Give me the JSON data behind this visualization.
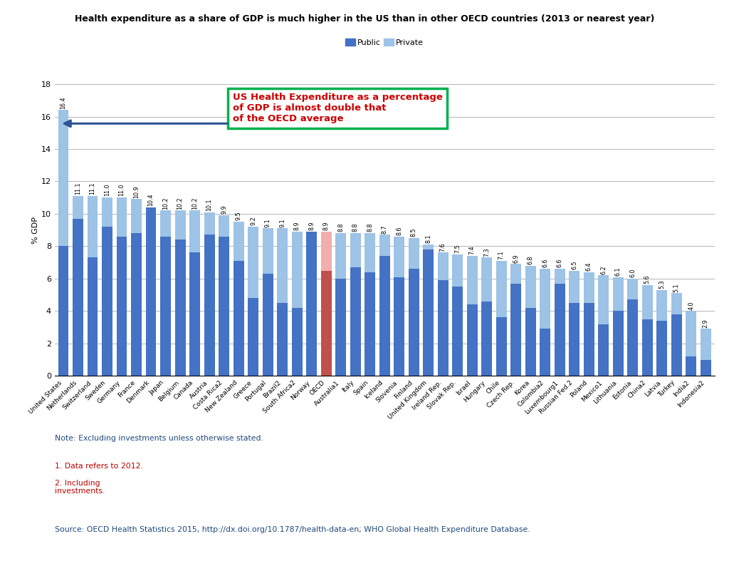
{
  "title": "Health expenditure as a share of GDP is much higher in the US than in other OECD countries (2013 or nearest year)",
  "ylabel": "% GDP",
  "legend_labels": [
    "Public",
    "Private"
  ],
  "public_color": "#4472C4",
  "private_color": "#9DC3E6",
  "oecd_public_color": "#C0504D",
  "oecd_private_color": "#F2AEAC",
  "background_color": "#FFFFFF",
  "countries": [
    "United States",
    "Netherlands",
    "Switzerland",
    "Sweden",
    "Germany",
    "France",
    "Denmark",
    "Japan",
    "Belgium",
    "Canada",
    "Austria",
    "Costa Rica2",
    "New Zealand",
    "Greece",
    "Portugal",
    "Brazil2",
    "South Africa2",
    "Norway",
    "OECD",
    "Australia1",
    "Italy",
    "Spain",
    "Iceland",
    "Slovenia",
    "Finland",
    "United Kingdom",
    "Ireland Rep.",
    "Slovak Rep.",
    "Israel",
    "Hungary",
    "Chile",
    "Czech Rep.",
    "Korea",
    "Colombia2",
    "Luxembourg1",
    "Russian Fed.2",
    "Poland",
    "Mexico1",
    "Lithuania",
    "Estonia",
    "China2",
    "Latvia",
    "Turkey",
    "India2",
    "Indonesia2"
  ],
  "totals": [
    16.4,
    11.1,
    11.1,
    11.0,
    11.0,
    10.9,
    10.4,
    10.2,
    10.2,
    10.2,
    10.1,
    9.9,
    9.5,
    9.2,
    9.1,
    9.1,
    8.9,
    8.9,
    8.9,
    8.8,
    8.8,
    8.8,
    8.7,
    8.6,
    8.5,
    8.1,
    7.6,
    7.5,
    7.4,
    7.3,
    7.1,
    6.9,
    6.8,
    6.6,
    6.6,
    6.5,
    6.4,
    6.2,
    6.1,
    6.0,
    5.6,
    5.3,
    5.1,
    4.0,
    2.9
  ],
  "public": [
    8.0,
    9.7,
    7.3,
    9.2,
    8.6,
    8.8,
    10.4,
    8.6,
    8.4,
    7.6,
    8.7,
    8.6,
    7.1,
    4.8,
    6.3,
    4.5,
    4.2,
    8.9,
    6.5,
    6.0,
    6.7,
    6.4,
    7.4,
    6.1,
    6.6,
    7.8,
    5.9,
    5.5,
    4.4,
    4.6,
    3.6,
    5.7,
    4.2,
    2.9,
    5.7,
    4.5,
    4.5,
    3.2,
    4.0,
    4.7,
    3.5,
    3.4,
    3.8,
    1.2,
    1.0
  ],
  "source": "Source: OECD Health Statistics 2015, http://dx.doi.org/10.1787/health-data-en; WHO Global Health Expenditure Database.",
  "annotation_text": "US Health Expenditure as a percentage\nof GDP is almost double that\nof the OECD average",
  "ylim": [
    0,
    18
  ]
}
